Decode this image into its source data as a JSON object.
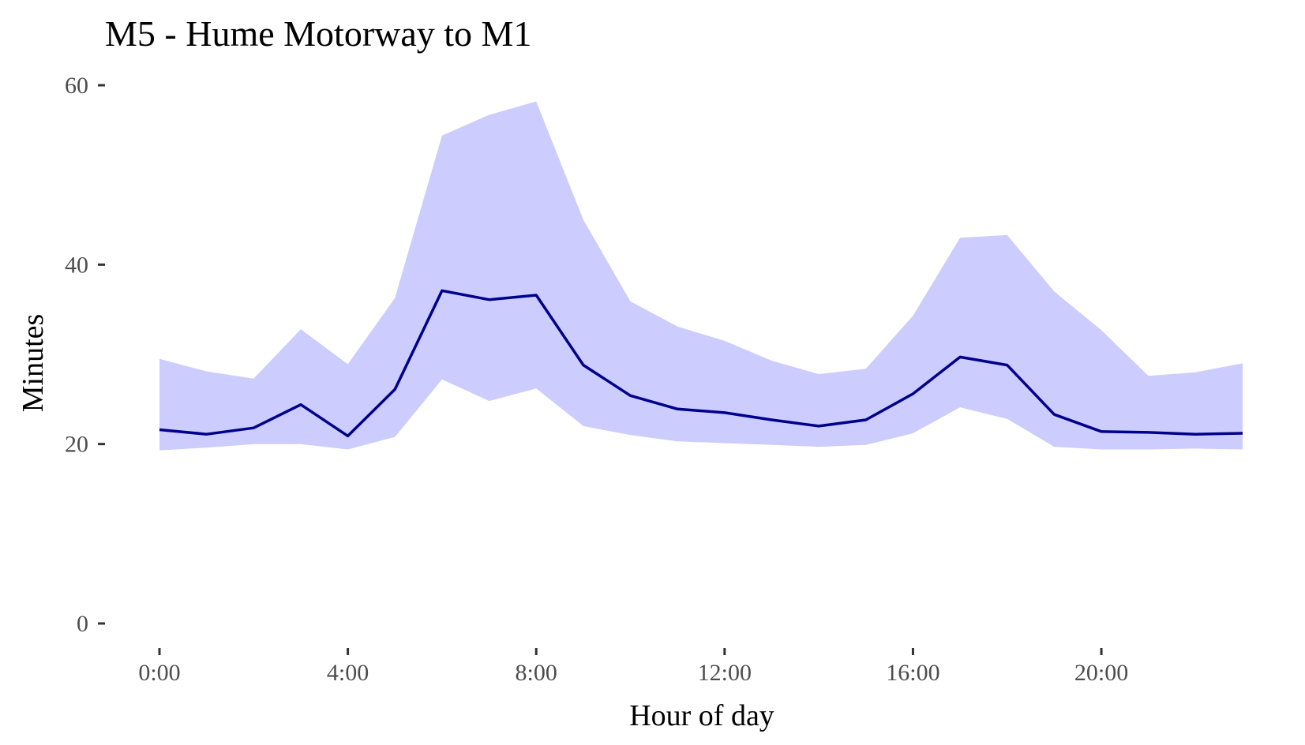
{
  "chart_data": {
    "type": "line",
    "title": "M5 - Hume Motorway to M1",
    "xlabel": "Hour of day",
    "ylabel": "Minutes",
    "xlim": [
      0,
      23
    ],
    "ylim": [
      0,
      60
    ],
    "x_ticks": [
      0,
      4,
      8,
      12,
      16,
      20
    ],
    "x_tick_labels": [
      "0:00",
      "4:00",
      "8:00",
      "12:00",
      "16:00",
      "20:00"
    ],
    "y_ticks": [
      0,
      20,
      40,
      60
    ],
    "y_tick_labels": [
      "0",
      "20",
      "40",
      "60"
    ],
    "grid": false,
    "legend": "none",
    "x": [
      0,
      1,
      2,
      3,
      4,
      5,
      6,
      7,
      8,
      9,
      10,
      11,
      12,
      13,
      14,
      15,
      16,
      17,
      18,
      19,
      20,
      21,
      22,
      23
    ],
    "series": [
      {
        "type": "line",
        "color": "#00008b",
        "values": [
          21.6,
          21.1,
          21.8,
          24.4,
          20.9,
          26.1,
          37.1,
          36.1,
          36.6,
          28.8,
          25.4,
          23.9,
          23.5,
          22.7,
          22.0,
          22.7,
          25.6,
          29.7,
          28.8,
          23.3,
          21.4,
          21.3,
          21.1,
          21.2
        ]
      }
    ],
    "band": {
      "type": "area",
      "color": "#ccccff",
      "lower": [
        19.3,
        19.6,
        20.0,
        20.0,
        19.4,
        20.8,
        27.2,
        24.8,
        26.2,
        22.0,
        21.0,
        20.3,
        20.1,
        19.9,
        19.7,
        19.9,
        21.2,
        24.1,
        22.8,
        19.7,
        19.4,
        19.4,
        19.5,
        19.4
      ],
      "upper": [
        29.5,
        28.1,
        27.3,
        32.8,
        28.9,
        36.3,
        54.4,
        56.7,
        58.2,
        45.0,
        35.9,
        33.1,
        31.5,
        29.3,
        27.8,
        28.4,
        34.3,
        43.0,
        43.3,
        37.0,
        32.7,
        27.6,
        28.0,
        29.0
      ]
    }
  }
}
